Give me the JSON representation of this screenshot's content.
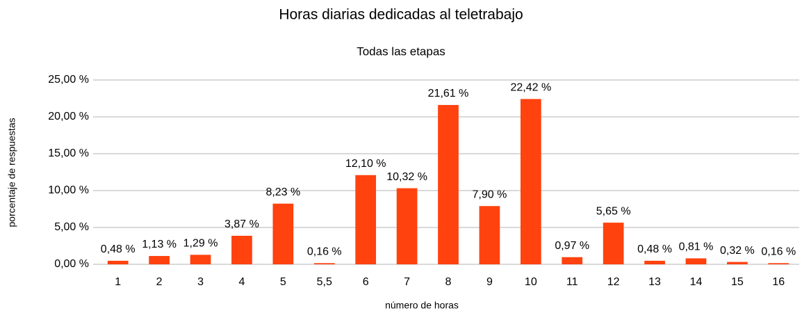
{
  "chart_data": {
    "type": "bar",
    "title": "Horas diarias dedicadas al teletrabajo",
    "subtitle": "Todas las etapas",
    "x_label": "número de horas",
    "y_label": "porcentaje de respuestas",
    "categories": [
      "1",
      "2",
      "3",
      "4",
      "5",
      "5,5",
      "6",
      "7",
      "8",
      "9",
      "10",
      "11",
      "12",
      "13",
      "14",
      "15",
      "16"
    ],
    "values": [
      0.48,
      1.13,
      1.29,
      3.87,
      8.23,
      0.16,
      12.1,
      10.32,
      21.61,
      7.9,
      22.42,
      0.97,
      5.65,
      0.48,
      0.81,
      0.32,
      0.16
    ],
    "value_labels": [
      "0,48 %",
      "1,13 %",
      "1,29 %",
      "3,87 %",
      "8,23 %",
      "0,16 %",
      "12,10 %",
      "10,32 %",
      "21,61 %",
      "7,90 %",
      "22,42 %",
      "0,97 %",
      "5,65 %",
      "0,48 %",
      "0,81 %",
      "0,32 %",
      "0,16 %"
    ],
    "color": "#ff420e",
    "ylim": [
      0,
      25
    ],
    "yticks": [
      {
        "value": 0,
        "label": "0,00 %"
      },
      {
        "value": 5,
        "label": "5,00 %"
      },
      {
        "value": 10,
        "label": "10,00 %"
      },
      {
        "value": 15,
        "label": "15,00 %"
      },
      {
        "value": 20,
        "label": "20,00 %"
      },
      {
        "value": 25,
        "label": "25,00 %"
      }
    ],
    "grid": true
  }
}
